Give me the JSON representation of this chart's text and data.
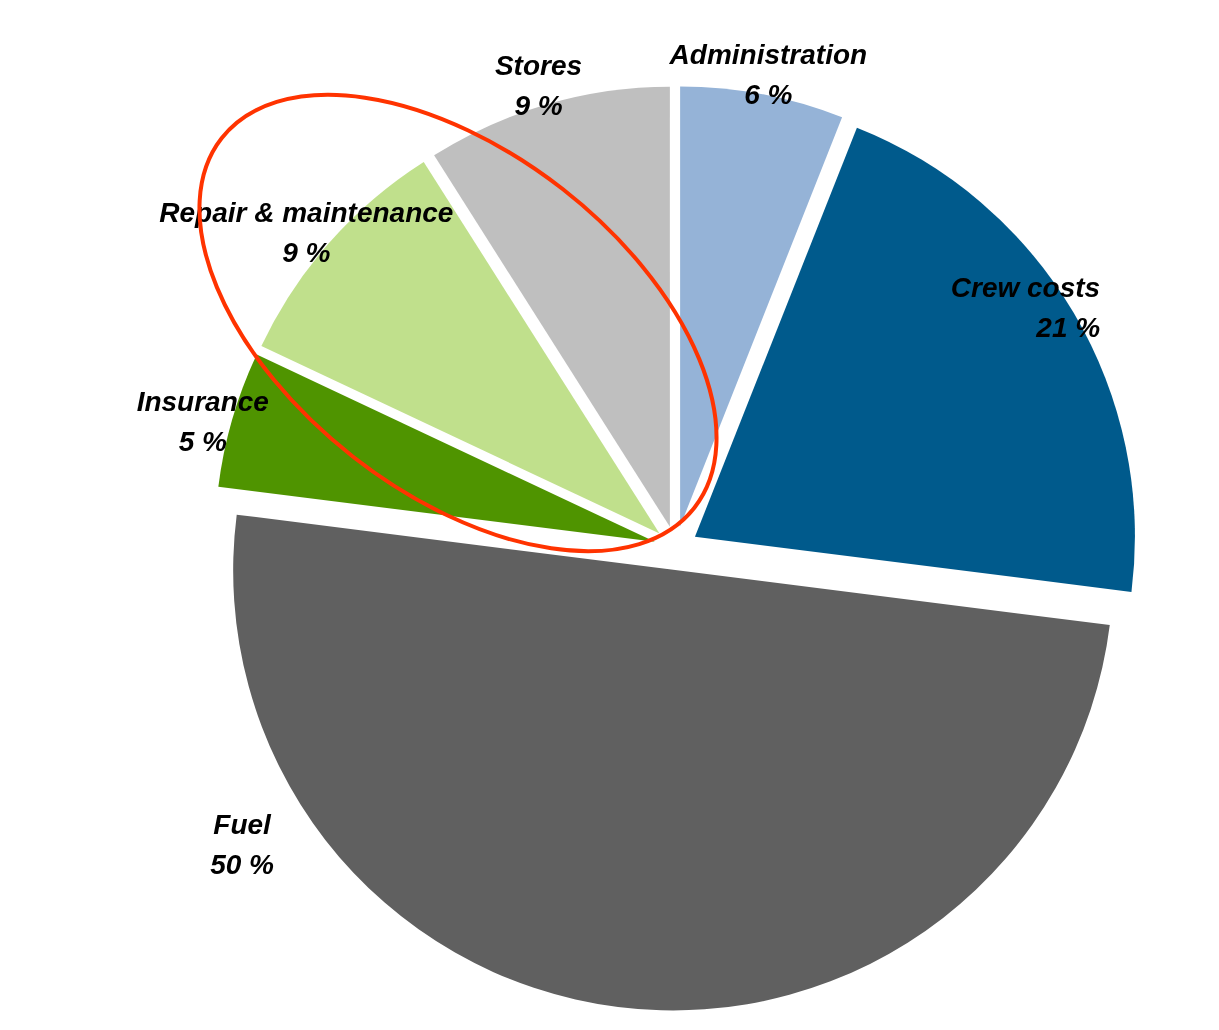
{
  "chart_data": {
    "type": "pie",
    "categories": [
      "Administration",
      "Crew costs",
      "Fuel",
      "Insurance",
      "Repair & maintenance",
      "Stores"
    ],
    "values": [
      6,
      21,
      50,
      5,
      9,
      9
    ],
    "value_labels": [
      "6 %",
      "21 %",
      "50 %",
      "5 %",
      "9 %",
      "9 %"
    ],
    "colors": [
      "#95b3d7",
      "#005a8c",
      "#606060",
      "#4f9400",
      "#c0e08c",
      "#bfbfbf"
    ]
  }
}
